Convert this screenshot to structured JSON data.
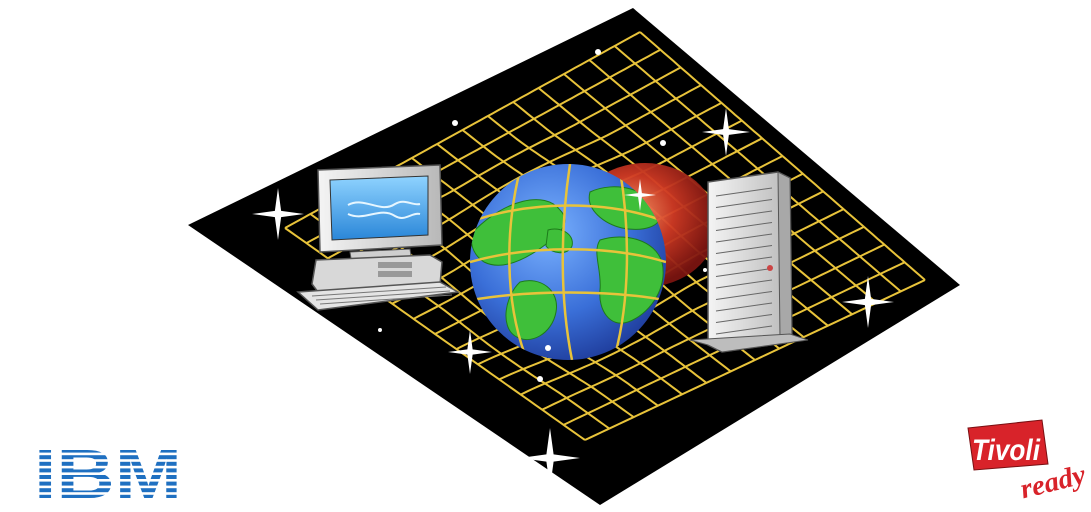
{
  "logos": {
    "ibm": {
      "text": "IBM",
      "color": "#1f70c1"
    },
    "tivoli": {
      "text": "Tivoli",
      "subtext": "ready",
      "color": "#d8232a"
    }
  },
  "colors": {
    "space": "#000000",
    "grid": "#e8c33a",
    "ocean": "#3a6fd8",
    "land": "#3fbf3a",
    "halo": "#c2281e",
    "screen": "#38a7ea"
  },
  "icons": {
    "desktop": "desktop-computer-icon",
    "server": "server-tower-icon",
    "globe": "globe-icon",
    "star": "sparkle-icon"
  }
}
